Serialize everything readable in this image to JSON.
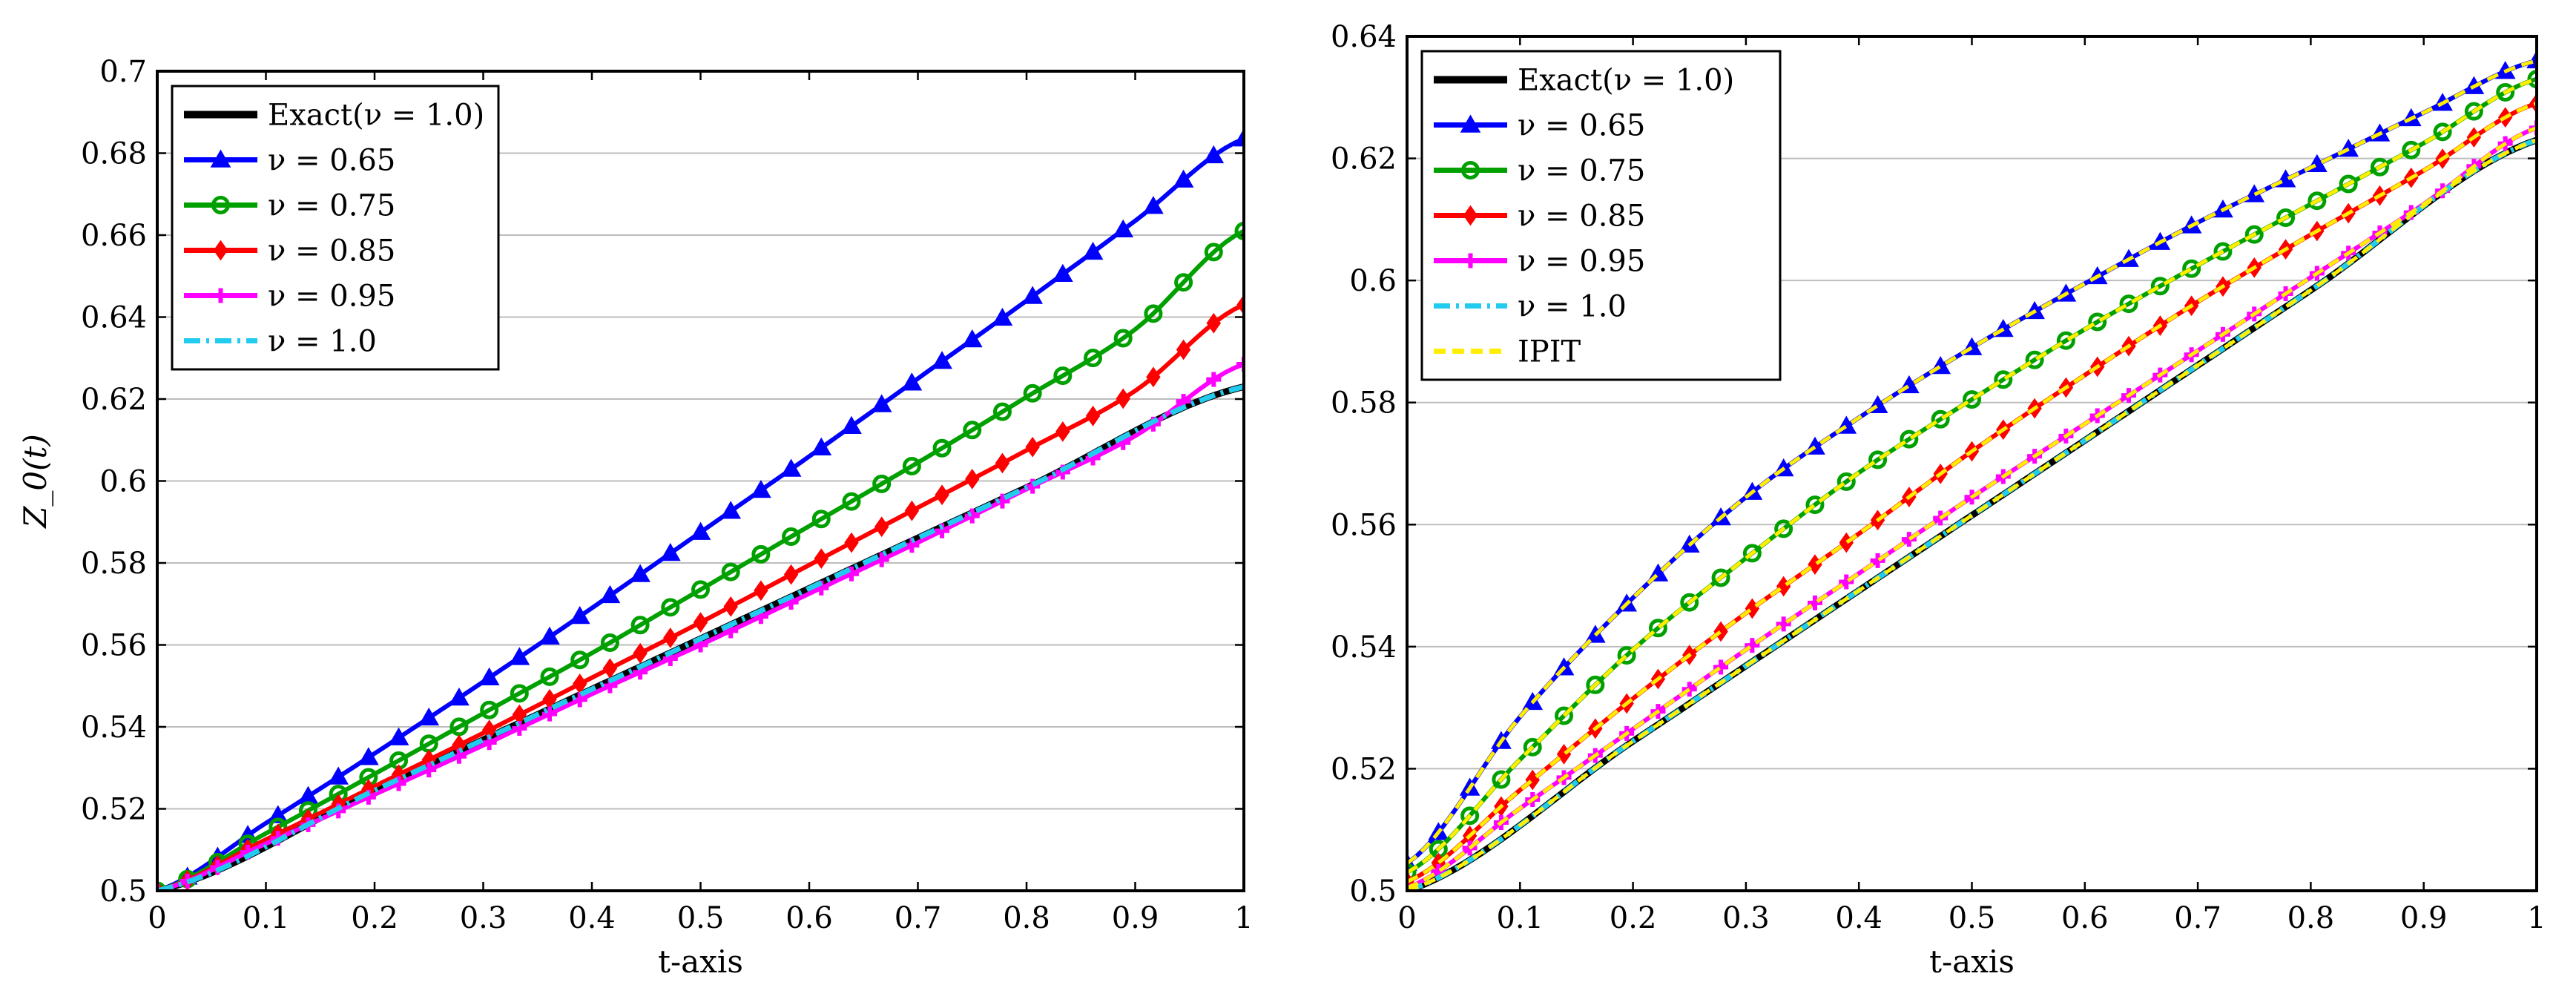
{
  "chart_data": [
    {
      "type": "line",
      "title": "",
      "xlabel": "t-axis",
      "ylabel": "Z_0(t)",
      "xlim": [
        0,
        1
      ],
      "ylim": [
        0.5,
        0.7
      ],
      "xticks": [
        "0",
        "0.1",
        "0.2",
        "0.3",
        "0.4",
        "0.5",
        "0.6",
        "0.7",
        "0.8",
        "0.9",
        "1"
      ],
      "yticks": [
        "0.5",
        "0.52",
        "0.54",
        "0.56",
        "0.58",
        "0.6",
        "0.62",
        "0.64",
        "0.66",
        "0.68",
        "0.7"
      ],
      "grid": true,
      "legend_position": "top-left",
      "series": [
        {
          "name": "Exact(ν = 1.0)",
          "color": "#000000",
          "style": "solid",
          "marker": "none",
          "t": [
            0,
            0.2,
            0.4,
            0.6,
            0.8,
            1.0
          ],
          "z": [
            0.5,
            0.5245,
            0.5492,
            0.5738,
            0.5984,
            0.623
          ]
        },
        {
          "name": "ν = 0.65",
          "color": "#0000ff",
          "style": "solid",
          "marker": "triangle",
          "t": [
            0,
            0.1,
            0.2,
            0.3,
            0.4,
            0.5,
            0.6,
            0.7,
            0.8,
            0.9,
            1.0
          ],
          "z": [
            0.5,
            0.5165,
            0.5335,
            0.551,
            0.569,
            0.5875,
            0.606,
            0.625,
            0.644,
            0.6635,
            0.6835
          ]
        },
        {
          "name": "ν = 0.75",
          "color": "#00a000",
          "style": "solid",
          "marker": "circle",
          "t": [
            0,
            0.1,
            0.2,
            0.3,
            0.4,
            0.5,
            0.6,
            0.7,
            0.8,
            0.9,
            1.0
          ],
          "z": [
            0.5,
            0.514,
            0.5285,
            0.5433,
            0.558,
            0.5735,
            0.589,
            0.6045,
            0.6205,
            0.637,
            0.661
          ]
        },
        {
          "name": "ν = 0.85",
          "color": "#ff0000",
          "style": "solid",
          "marker": "diamond",
          "t": [
            0,
            0.1,
            0.2,
            0.3,
            0.4,
            0.5,
            0.6,
            0.7,
            0.8,
            0.9,
            1.0
          ],
          "z": [
            0.5,
            0.5125,
            0.5255,
            0.5385,
            0.552,
            0.5655,
            0.5795,
            0.5935,
            0.6075,
            0.622,
            0.643
          ]
        },
        {
          "name": "ν = 0.95",
          "color": "#ff00ff",
          "style": "solid",
          "marker": "plus",
          "t": [
            0,
            0.1,
            0.2,
            0.3,
            0.4,
            0.5,
            0.6,
            0.7,
            0.8,
            0.9,
            1.0
          ],
          "z": [
            0.5,
            0.5115,
            0.5235,
            0.5355,
            0.548,
            0.56,
            0.5725,
            0.585,
            0.598,
            0.611,
            0.6285
          ]
        },
        {
          "name": "ν = 1.0",
          "color": "#22ccee",
          "style": "dashdot",
          "marker": "none",
          "t": [
            0,
            0.2,
            0.4,
            0.6,
            0.8,
            1.0
          ],
          "z": [
            0.5,
            0.5245,
            0.5492,
            0.5738,
            0.5984,
            0.623
          ]
        }
      ]
    },
    {
      "type": "line",
      "title": "",
      "xlabel": "t-axis",
      "ylabel": "",
      "xlim": [
        0,
        1
      ],
      "ylim": [
        0.5,
        0.64
      ],
      "xticks": [
        "0",
        "0.1",
        "0.2",
        "0.3",
        "0.4",
        "0.5",
        "0.6",
        "0.7",
        "0.8",
        "0.9",
        "1"
      ],
      "yticks": [
        "0.5",
        "0.52",
        "0.54",
        "0.56",
        "0.58",
        "0.6",
        "0.62",
        "0.64"
      ],
      "grid": true,
      "legend_position": "top-left",
      "series": [
        {
          "name": "Exact(ν = 1.0)",
          "color": "#000000",
          "style": "solid",
          "marker": "none",
          "t": [
            0,
            0.2,
            0.4,
            0.6,
            0.8,
            1.0
          ],
          "z": [
            0.5,
            0.5245,
            0.5492,
            0.5738,
            0.5984,
            0.623
          ]
        },
        {
          "name": "ν = 0.65",
          "color": "#0000ff",
          "style": "solid",
          "marker": "triangle",
          "t": [
            0,
            0.1,
            0.2,
            0.3,
            0.4,
            0.5,
            0.6,
            0.7,
            0.8,
            0.9,
            1.0
          ],
          "z": [
            0.5045,
            0.5285,
            0.548,
            0.5645,
            0.5775,
            0.589,
            0.5995,
            0.6095,
            0.6185,
            0.6275,
            0.636
          ]
        },
        {
          "name": "ν = 0.75",
          "color": "#00a000",
          "style": "solid",
          "marker": "circle",
          "t": [
            0,
            0.1,
            0.2,
            0.3,
            0.4,
            0.5,
            0.6,
            0.7,
            0.8,
            0.9,
            1.0
          ],
          "z": [
            0.503,
            0.5215,
            0.5395,
            0.5545,
            0.5685,
            0.5805,
            0.592,
            0.6025,
            0.6125,
            0.6225,
            0.633
          ]
        },
        {
          "name": "ν = 0.85",
          "color": "#ff0000",
          "style": "solid",
          "marker": "diamond",
          "t": [
            0,
            0.1,
            0.2,
            0.3,
            0.4,
            0.5,
            0.6,
            0.7,
            0.8,
            0.9,
            1.0
          ],
          "z": [
            0.5015,
            0.5165,
            0.5315,
            0.5455,
            0.5585,
            0.572,
            0.5845,
            0.5965,
            0.6075,
            0.618,
            0.629
          ]
        },
        {
          "name": "ν = 0.95",
          "color": "#ff00ff",
          "style": "solid",
          "marker": "plus",
          "t": [
            0,
            0.1,
            0.2,
            0.3,
            0.4,
            0.5,
            0.6,
            0.7,
            0.8,
            0.9,
            1.0
          ],
          "z": [
            0.5005,
            0.5135,
            0.5265,
            0.5395,
            0.552,
            0.5645,
            0.5765,
            0.5885,
            0.6005,
            0.6125,
            0.625
          ]
        },
        {
          "name": "ν = 1.0",
          "color": "#22ccee",
          "style": "dashdot",
          "marker": "none",
          "t": [
            0,
            0.2,
            0.4,
            0.6,
            0.8,
            1.0
          ],
          "z": [
            0.5,
            0.5245,
            0.5492,
            0.5738,
            0.5984,
            0.623
          ]
        },
        {
          "name": "IPIT",
          "color": "#ffee00",
          "style": "dashed",
          "marker": "none",
          "overlay": [
            0.65,
            0.75,
            0.85,
            0.95,
            1.0
          ]
        }
      ]
    }
  ]
}
